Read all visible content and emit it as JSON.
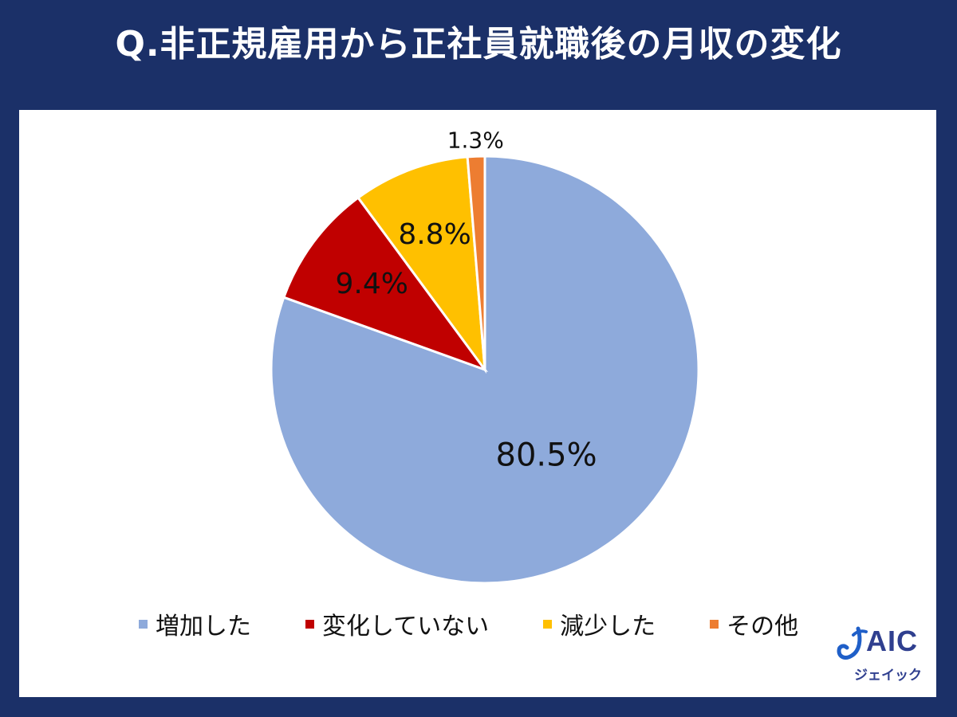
{
  "header": {
    "title": "Q.非正規雇用から正社員就職後の月収の変化"
  },
  "chart_data": {
    "type": "pie",
    "title": "Q.非正規雇用から正社員就職後の月収の変化",
    "start": "12 o'clock, clockwise",
    "slices": [
      {
        "label": "増加した",
        "value": 80.5,
        "display": "80.5%",
        "color": "#8eaadb"
      },
      {
        "label": "変化していない",
        "value": 9.4,
        "display": "9.4%",
        "color": "#c00000"
      },
      {
        "label": "減少した",
        "value": 8.8,
        "display": "8.8%",
        "color": "#ffc000"
      },
      {
        "label": "その他",
        "value": 1.3,
        "display": "1.3%",
        "color": "#ed7d31"
      }
    ],
    "legend_position": "bottom"
  },
  "logo": {
    "word": "AIC",
    "kana": "ジェイック",
    "color": "#2f3f8f",
    "accent": "#1f5fc8"
  }
}
